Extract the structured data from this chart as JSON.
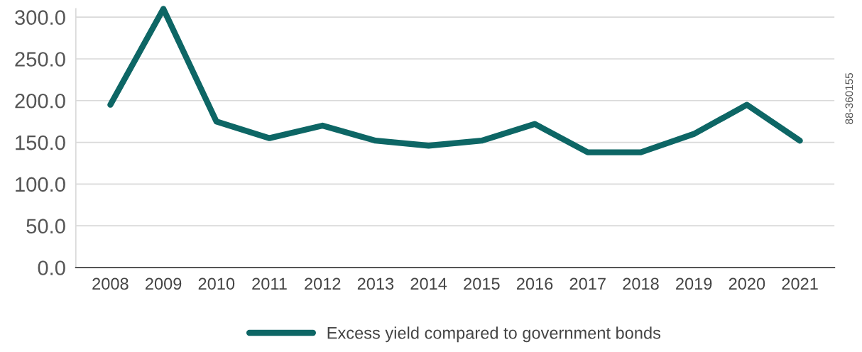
{
  "chart_data": {
    "type": "line",
    "categories": [
      "2008",
      "2009",
      "2010",
      "2011",
      "2012",
      "2013",
      "2014",
      "2015",
      "2016",
      "2017",
      "2018",
      "2019",
      "2020",
      "2021"
    ],
    "series": [
      {
        "name": "Excess yield compared to government bonds",
        "color": "#0d6665",
        "values": [
          195,
          310,
          175,
          155,
          170,
          152,
          146,
          152,
          172,
          138,
          138,
          160,
          195,
          152
        ]
      }
    ],
    "ylim": [
      0,
      310
    ],
    "yticks": [
      {
        "value": 0,
        "label": "0.0"
      },
      {
        "value": 50,
        "label": "50.0"
      },
      {
        "value": 100,
        "label": "100.0"
      },
      {
        "value": 150,
        "label": "150.0"
      },
      {
        "value": 200,
        "label": "200.0"
      },
      {
        "value": 250,
        "label": "250.0"
      },
      {
        "value": 300,
        "label": "300.0"
      }
    ],
    "grid": "y",
    "legend": "bottom",
    "marker": "none",
    "line_style": "solid",
    "annotations": [
      "88-360155"
    ]
  }
}
